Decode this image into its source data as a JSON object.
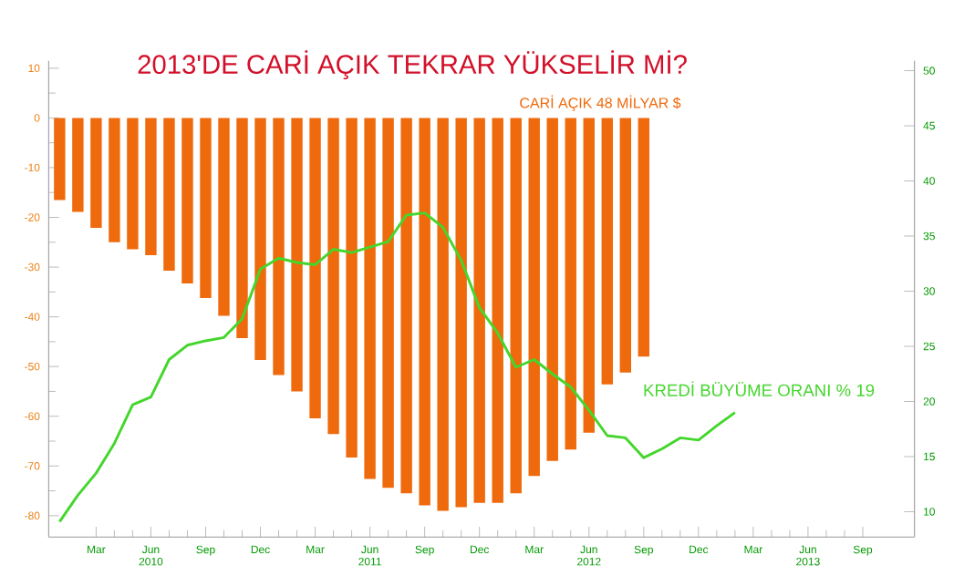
{
  "chart_data": {
    "type": "bar",
    "title": "2013'DE CARİ AÇIK TEKRAR YÜKSELİR Mİ?",
    "xlim": [
      "2009-12-13",
      "2013-11-26"
    ],
    "xticks": [
      {
        "value": "2010-03",
        "label": "Mar"
      },
      {
        "value": "2010-06",
        "label": "Jun 2010"
      },
      {
        "value": "2010-09",
        "label": "Sep"
      },
      {
        "value": "2010-12",
        "label": "Dec"
      },
      {
        "value": "2011-03",
        "label": "Mar"
      },
      {
        "value": "2011-06",
        "label": "Jun 2011"
      },
      {
        "value": "2011-09",
        "label": "Sep"
      },
      {
        "value": "2011-12",
        "label": "Dec"
      },
      {
        "value": "2012-03",
        "label": "Mar"
      },
      {
        "value": "2012-06",
        "label": "Jun 2012"
      },
      {
        "value": "2012-09",
        "label": "Sep"
      },
      {
        "value": "2012-12",
        "label": "Dec"
      },
      {
        "value": "2013-03",
        "label": "Mar"
      },
      {
        "value": "2013-06",
        "label": "Jun 2013"
      },
      {
        "value": "2013-09",
        "label": "Sep"
      }
    ],
    "ylim": [
      -84.3,
      11.5
    ],
    "yticks": [
      10,
      0,
      -10,
      -20,
      -30,
      -40,
      -50,
      -60,
      -70,
      -80
    ],
    "y2lim": [
      7.7,
      50.9
    ],
    "y2ticks": [
      10,
      15,
      20,
      25,
      30,
      35,
      40,
      45,
      50
    ],
    "series": [
      {
        "name": "CARİ AÇIK 48 MİLYAR $",
        "color": "#ee6a0c",
        "x": [
          "2010-01",
          "2010-02",
          "2010-03",
          "2010-04",
          "2010-05",
          "2010-06",
          "2010-07",
          "2010-08",
          "2010-09",
          "2010-10",
          "2010-11",
          "2010-12",
          "2011-01",
          "2011-02",
          "2011-03",
          "2011-04",
          "2011-05",
          "2011-06",
          "2011-07",
          "2011-08",
          "2011-09",
          "2011-10",
          "2011-11",
          "2011-12",
          "2012-01",
          "2012-02",
          "2012-03",
          "2012-04",
          "2012-05",
          "2012-06",
          "2012-07",
          "2012-08",
          "2012-09"
        ],
        "values": [
          -16.5,
          -18.9,
          -22.1,
          -25.0,
          -26.4,
          -27.6,
          -30.7,
          -33.3,
          -36.2,
          -39.8,
          -44.3,
          -48.7,
          -51.7,
          -55.0,
          -60.4,
          -63.6,
          -68.3,
          -72.6,
          -74.4,
          -75.5,
          -77.9,
          -79.0,
          -78.3,
          -77.4,
          -77.4,
          -75.5,
          -72.0,
          -69.0,
          -66.7,
          -63.3,
          -53.6,
          -51.2,
          -48.0
        ]
      },
      {
        "name": "KREDİ BÜYÜME ORANI % 19",
        "type": "line",
        "axis": "y2",
        "color": "#44d62c",
        "x": [
          "2010-01",
          "2010-02",
          "2010-03",
          "2010-04",
          "2010-05",
          "2010-06",
          "2010-07",
          "2010-08",
          "2010-09",
          "2010-10",
          "2010-11",
          "2010-12",
          "2011-01",
          "2011-02",
          "2011-03",
          "2011-04",
          "2011-05",
          "2011-06",
          "2011-07",
          "2011-08",
          "2011-09",
          "2011-10",
          "2011-11",
          "2011-12",
          "2012-01",
          "2012-02",
          "2012-03",
          "2012-04",
          "2012-05",
          "2012-06",
          "2012-07",
          "2012-08",
          "2012-09",
          "2012-10",
          "2012-11",
          "2012-12",
          "2013-01",
          "2013-02"
        ],
        "values": [
          9.1,
          11.5,
          13.5,
          16.2,
          19.7,
          20.4,
          23.8,
          25.1,
          25.5,
          25.8,
          27.5,
          32.0,
          33.0,
          32.6,
          32.4,
          33.8,
          33.5,
          34.0,
          34.5,
          36.9,
          37.1,
          35.8,
          32.8,
          28.5,
          26.2,
          23.1,
          23.8,
          22.5,
          21.3,
          19.2,
          16.9,
          16.7,
          14.9,
          15.7,
          16.7,
          16.5,
          17.8,
          19
        ]
      }
    ]
  }
}
